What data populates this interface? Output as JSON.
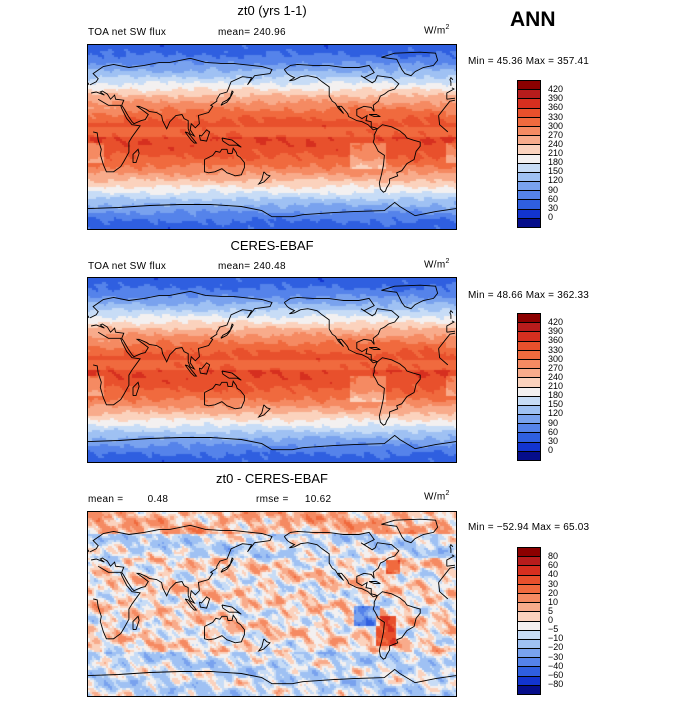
{
  "header": {
    "season": "ANN"
  },
  "chart_data": [
    {
      "type": "heatmap",
      "title": "zt0 (yrs 1-1)",
      "variable_label": "TOA net SW flux",
      "stat_label": "mean=",
      "stat_value": "240.96",
      "units_base": "W/m",
      "units_exp": "2",
      "range_text": "Min =  45.36 Max = 357.41",
      "min": 45.36,
      "max": 357.41,
      "colorbar_levels": [
        "420",
        "390",
        "360",
        "330",
        "300",
        "270",
        "240",
        "210",
        "180",
        "150",
        "120",
        "90",
        "60",
        "30",
        "0"
      ],
      "colorbar_colors": [
        "#8b0000",
        "#b71c1c",
        "#d62f1f",
        "#e8502c",
        "#f06a3e",
        "#f58a62",
        "#f8ab8b",
        "#fbd2bd",
        "#f3f0f0",
        "#c7dcf6",
        "#9fc1f3",
        "#79a2ee",
        "#5583ea",
        "#2f5fe0",
        "#1234cf",
        "#050d8a"
      ],
      "field": "tsw"
    },
    {
      "type": "heatmap",
      "title": "CERES-EBAF",
      "variable_label": "TOA net SW flux",
      "stat_label": "mean=",
      "stat_value": "240.48",
      "units_base": "W/m",
      "units_exp": "2",
      "range_text": "Min =  48.66 Max = 362.33",
      "min": 48.66,
      "max": 362.33,
      "colorbar_levels": [
        "420",
        "390",
        "360",
        "330",
        "300",
        "270",
        "240",
        "210",
        "180",
        "150",
        "120",
        "90",
        "60",
        "30",
        "0"
      ],
      "colorbar_colors": [
        "#8b0000",
        "#b71c1c",
        "#d62f1f",
        "#e8502c",
        "#f06a3e",
        "#f58a62",
        "#f8ab8b",
        "#fbd2bd",
        "#f3f0f0",
        "#c7dcf6",
        "#9fc1f3",
        "#79a2ee",
        "#5583ea",
        "#2f5fe0",
        "#1234cf",
        "#050d8a"
      ],
      "field": "tsw"
    },
    {
      "type": "heatmap",
      "title": "zt0 - CERES-EBAF",
      "stat_label": "mean =",
      "stat_value": "0.48",
      "stat2_label": "rmse =",
      "stat2_value": "10.62",
      "units_base": "W/m",
      "units_exp": "2",
      "range_text": "Min = −52.94 Max =  65.03",
      "min": -52.94,
      "max": 65.03,
      "colorbar_levels": [
        "80",
        "60",
        "40",
        "30",
        "20",
        "10",
        "5",
        "0",
        "−5",
        "−10",
        "−20",
        "−30",
        "−40",
        "−60",
        "−80"
      ],
      "colorbar_colors": [
        "#8b0000",
        "#b71c1c",
        "#d62f1f",
        "#e8502c",
        "#f06a3e",
        "#f58a62",
        "#f8ab8b",
        "#fbd2bd",
        "#f3f0f0",
        "#c7dcf6",
        "#9fc1f3",
        "#79a2ee",
        "#5583ea",
        "#2f5fe0",
        "#1234cf",
        "#050d8a"
      ],
      "field": "diff"
    }
  ]
}
